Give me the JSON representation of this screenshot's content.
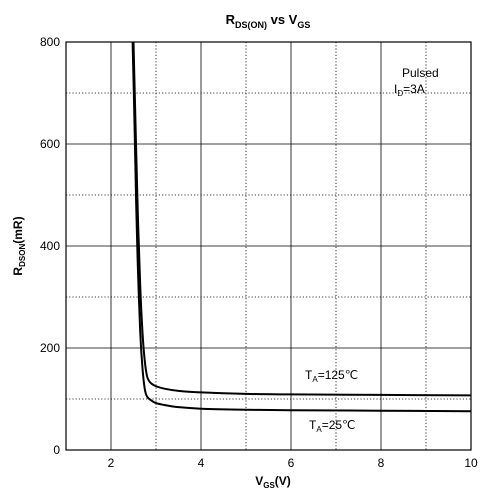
{
  "chart_data": {
    "type": "line",
    "title": {
      "main": "R",
      "main_sub": "DS(ON)",
      "mid": " vs V",
      "mid_sub": "GS"
    },
    "xlabel": {
      "main": "V",
      "sub": "GS",
      "tail": "(V)"
    },
    "ylabel": {
      "main": "R",
      "sub": "DSON",
      "tail": "(mR)"
    },
    "xlim": [
      1,
      10
    ],
    "ylim": [
      0,
      800
    ],
    "xticks": [
      2,
      4,
      6,
      8,
      10
    ],
    "yticks": [
      0,
      200,
      400,
      600,
      800
    ],
    "grid": true,
    "annotation": {
      "line1": "Pulsed",
      "line2_main": "I",
      "line2_sub": "D",
      "line2_tail": "=3A"
    },
    "series": [
      {
        "name": {
          "main": "T",
          "sub": "A",
          "tail": "=125℃"
        },
        "x": [
          2.5,
          2.55,
          2.6,
          2.65,
          2.7,
          2.75,
          2.8,
          2.85,
          2.9,
          3.0,
          3.2,
          3.5,
          4.0,
          5.0,
          6.0,
          8.0,
          10.0
        ],
        "y": [
          800,
          620,
          450,
          320,
          230,
          175,
          145,
          135,
          130,
          125,
          120,
          116,
          113,
          110,
          109,
          108,
          107
        ]
      },
      {
        "name": {
          "main": "T",
          "sub": "A",
          "tail": "=25℃"
        },
        "x": [
          2.48,
          2.52,
          2.56,
          2.6,
          2.65,
          2.7,
          2.75,
          2.8,
          2.9,
          3.0,
          3.2,
          3.5,
          4.0,
          5.0,
          6.0,
          8.0,
          10.0
        ],
        "y": [
          800,
          650,
          480,
          350,
          230,
          160,
          120,
          105,
          97,
          92,
          88,
          84,
          81,
          79,
          78,
          77,
          76
        ]
      }
    ]
  }
}
